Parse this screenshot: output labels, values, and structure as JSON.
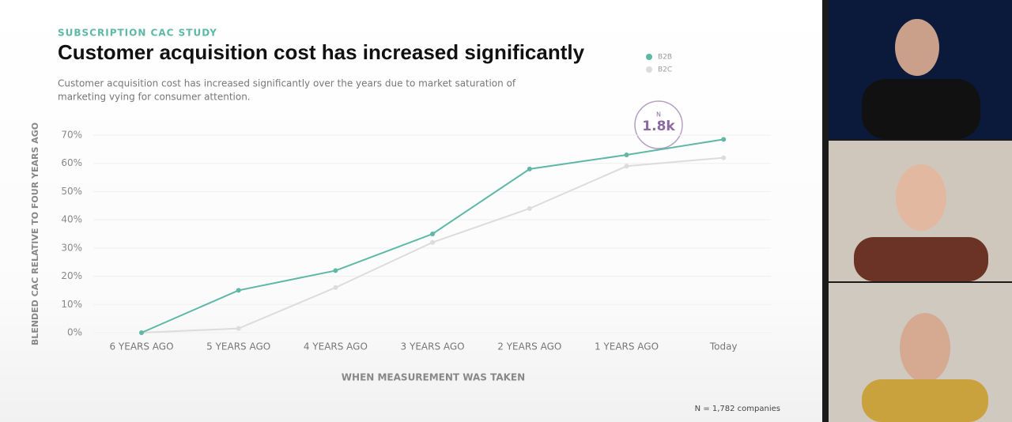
{
  "chart_data": {
    "type": "line",
    "kicker": "SUBSCRIPTION CAC STUDY",
    "title": "Customer acquisition cost has increased significantly",
    "subtitle": [
      "Customer acquisition cost has increased significantly over the years due to market saturation of",
      "marketing vying for consumer attention."
    ],
    "y_label": "BLENDED CAC RELATIVE TO FOUR YEARS AGO",
    "x_label": "WHEN MEASUREMENT WAS TAKEN",
    "badge": {
      "label": "N",
      "value": "1.8k"
    },
    "footnote": "N = 1,782 companies",
    "categories": [
      "6 YEARS AGO",
      "5 YEARS AGO",
      "4 YEARS AGO",
      "3 YEARS AGO",
      "2 YEARS AGO",
      "1 YEARS AGO",
      "Today"
    ],
    "series": [
      {
        "name": "B2B",
        "color": "#5fb8a5",
        "values": [
          0,
          15,
          22,
          35,
          58,
          63,
          68.5
        ]
      },
      {
        "name": "B2C",
        "color": "#dcdcdc",
        "values": [
          0,
          1.5,
          16,
          32,
          44,
          59,
          62
        ]
      }
    ],
    "ylim": [
      0,
      70
    ],
    "yticks": [
      {
        "value": 0,
        "label": "0%"
      },
      {
        "value": 10,
        "label": "10%"
      },
      {
        "value": 20,
        "label": "20%"
      },
      {
        "value": 30,
        "label": "30%"
      },
      {
        "value": 40,
        "label": "40%"
      },
      {
        "value": 50,
        "label": "50%"
      },
      {
        "value": 60,
        "label": "60%"
      },
      {
        "value": 70,
        "label": "70%"
      }
    ],
    "grid": true,
    "legend": "top-right"
  }
}
